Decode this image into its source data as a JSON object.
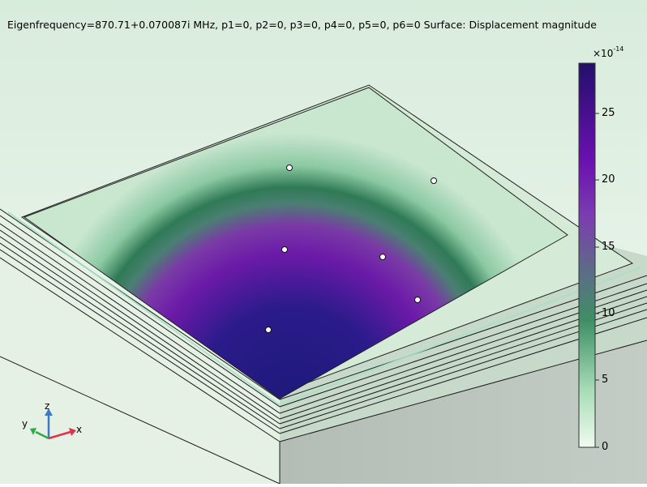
{
  "plot": {
    "title": "Eigenfrequency=870.71+0.070087i MHz, p1=0, p2=0, p3=0, p4=0, p5=0, p6=0  Surface: Displacement magnitude"
  },
  "colorbar": {
    "multiplier_base": "×10",
    "multiplier_exponent": "-14",
    "ticks": [
      "25",
      "20",
      "15",
      "10",
      "5",
      "0"
    ],
    "colormap": [
      "#f0fbef",
      "#7fcf9e",
      "#3a8a62",
      "#6f2fa8",
      "#5a0fb5",
      "#23105f"
    ]
  },
  "axes": {
    "x_label": "x",
    "y_label": "y",
    "z_label": "z",
    "x_color": "#e0304a",
    "y_color": "#2fa84a",
    "z_color": "#3a79c8"
  },
  "colors": {
    "background_top": "#d9eedd",
    "background_bottom": "#f2f8f2",
    "side_face": "#b9c3bb"
  }
}
